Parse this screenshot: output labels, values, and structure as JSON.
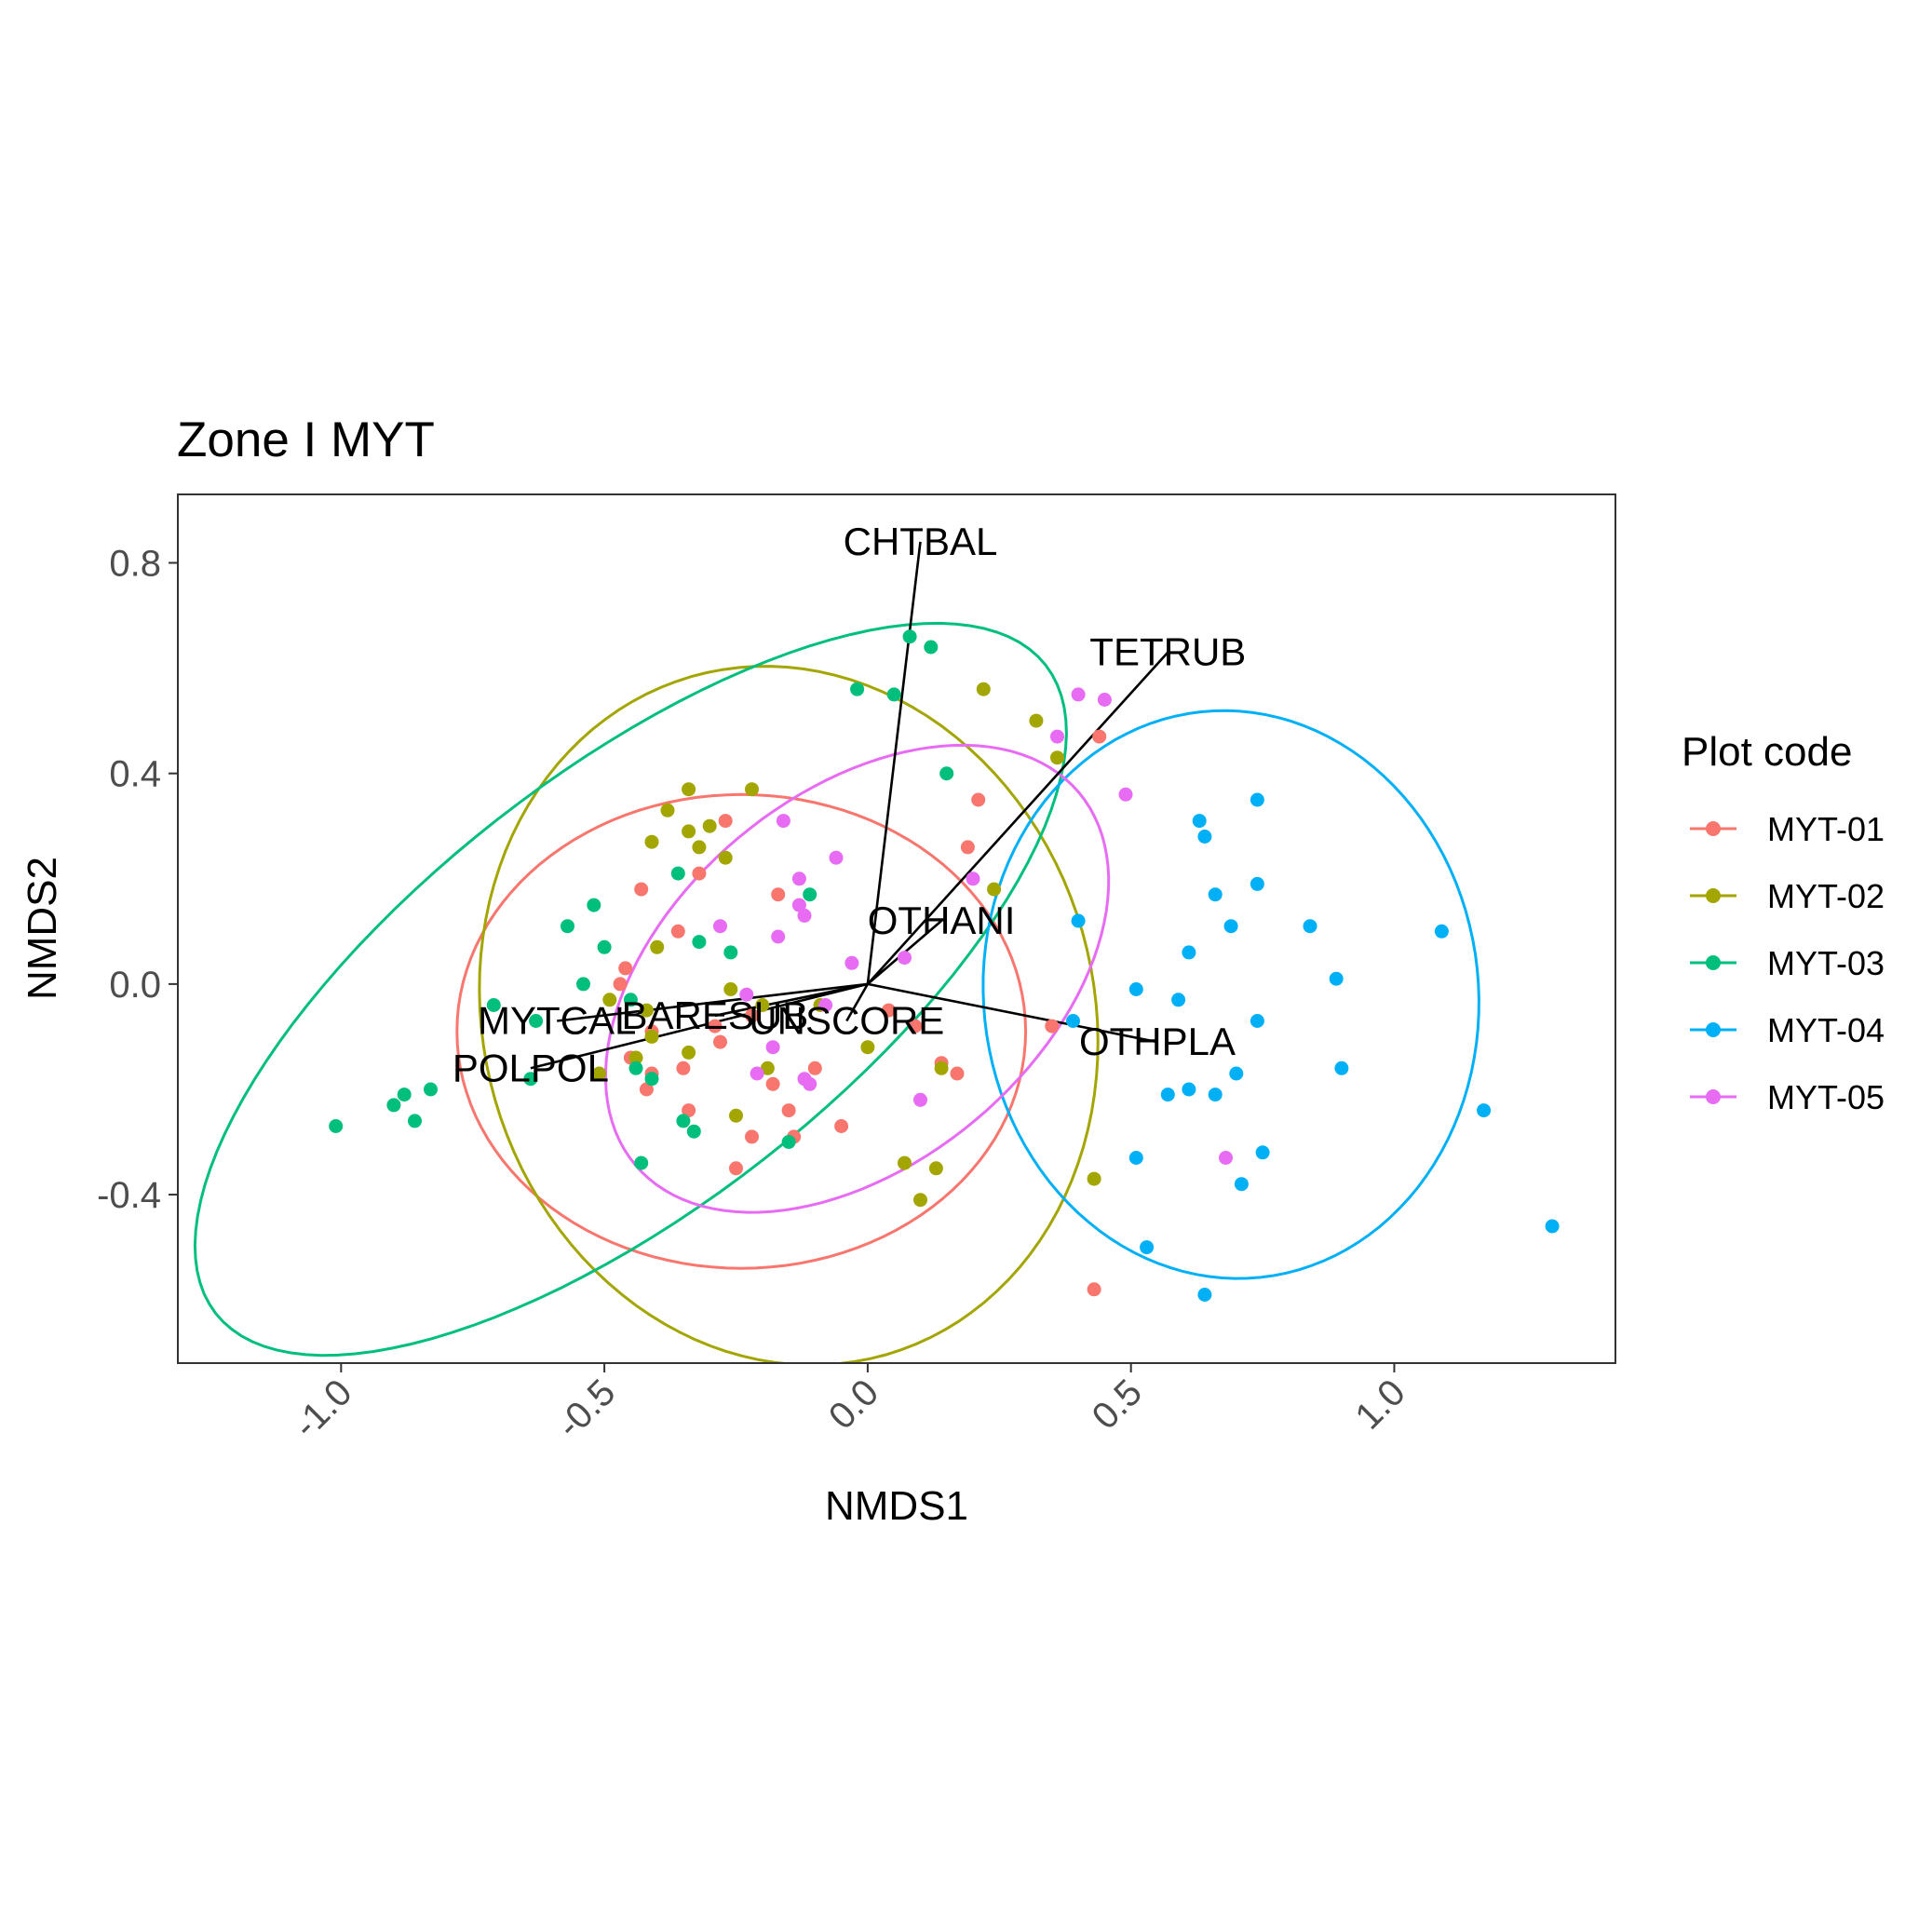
{
  "chart_data": {
    "type": "scatter",
    "title": "Zone I MYT",
    "xlabel": "NMDS1",
    "ylabel": "NMDS2",
    "xlim": [
      -1.31,
      1.42
    ],
    "ylim": [
      -0.72,
      0.93
    ],
    "x_ticks": [
      -1.0,
      -0.5,
      0.0,
      0.5,
      1.0
    ],
    "x_tick_labels": [
      "-1.0",
      "-0.5",
      "0.0",
      "0.5",
      "1.0"
    ],
    "y_ticks": [
      -0.4,
      0.0,
      0.4,
      0.8
    ],
    "y_tick_labels": [
      "-0.4",
      "0.0",
      "0.4",
      "0.8"
    ],
    "grid": false,
    "legend_title": "Plot code",
    "legend_position": "right",
    "series": [
      {
        "name": "MYT-01",
        "color": "#F8766D",
        "points": [
          [
            -0.43,
            0.18
          ],
          [
            -0.36,
            0.1
          ],
          [
            -0.32,
            0.21
          ],
          [
            -0.27,
            0.31
          ],
          [
            -0.17,
            0.17
          ],
          [
            -0.46,
            0.03
          ],
          [
            -0.41,
            -0.09
          ],
          [
            -0.45,
            -0.14
          ],
          [
            -0.42,
            -0.2
          ],
          [
            -0.41,
            -0.17
          ],
          [
            -0.35,
            -0.16
          ],
          [
            -0.34,
            -0.24
          ],
          [
            -0.28,
            -0.11
          ],
          [
            -0.29,
            -0.08
          ],
          [
            -0.25,
            -0.35
          ],
          [
            -0.22,
            -0.29
          ],
          [
            -0.18,
            -0.19
          ],
          [
            -0.15,
            -0.24
          ],
          [
            -0.14,
            -0.29
          ],
          [
            -0.1,
            -0.16
          ],
          [
            -0.05,
            -0.27
          ],
          [
            0.04,
            -0.05
          ],
          [
            0.09,
            -0.08
          ],
          [
            0.14,
            -0.15
          ],
          [
            0.17,
            -0.17
          ],
          [
            0.19,
            0.26
          ],
          [
            0.21,
            0.35
          ],
          [
            0.35,
            -0.08
          ],
          [
            0.44,
            0.47
          ],
          [
            0.43,
            -0.58
          ],
          [
            -0.47,
            0.0
          ],
          [
            -0.22,
            -0.06
          ]
        ]
      },
      {
        "name": "MYT-02",
        "color": "#A3A500",
        "points": [
          [
            -0.38,
            0.33
          ],
          [
            -0.34,
            0.37
          ],
          [
            -0.32,
            0.26
          ],
          [
            -0.3,
            0.3
          ],
          [
            -0.27,
            0.24
          ],
          [
            -0.22,
            0.37
          ],
          [
            -0.41,
            0.27
          ],
          [
            -0.34,
            0.29
          ],
          [
            -0.4,
            0.07
          ],
          [
            -0.49,
            -0.03
          ],
          [
            -0.44,
            -0.14
          ],
          [
            -0.41,
            -0.1
          ],
          [
            -0.34,
            -0.13
          ],
          [
            -0.51,
            -0.17
          ],
          [
            -0.25,
            -0.25
          ],
          [
            -0.26,
            -0.01
          ],
          [
            -0.2,
            -0.04
          ],
          [
            -0.19,
            -0.16
          ],
          [
            -0.09,
            -0.04
          ],
          [
            0.0,
            -0.12
          ],
          [
            0.07,
            -0.34
          ],
          [
            0.1,
            -0.41
          ],
          [
            0.13,
            -0.35
          ],
          [
            0.14,
            -0.16
          ],
          [
            0.22,
            0.56
          ],
          [
            0.24,
            0.18
          ],
          [
            0.32,
            0.5
          ],
          [
            0.36,
            0.43
          ],
          [
            0.43,
            -0.37
          ],
          [
            -0.42,
            -0.05
          ]
        ]
      },
      {
        "name": "MYT-03",
        "color": "#00BF7D",
        "points": [
          [
            -1.01,
            -0.27
          ],
          [
            -0.88,
            -0.21
          ],
          [
            -0.9,
            -0.23
          ],
          [
            -0.86,
            -0.26
          ],
          [
            -0.83,
            -0.2
          ],
          [
            -0.71,
            -0.04
          ],
          [
            -0.64,
            -0.18
          ],
          [
            -0.63,
            -0.07
          ],
          [
            -0.57,
            0.11
          ],
          [
            -0.52,
            0.15
          ],
          [
            -0.54,
            0.0
          ],
          [
            -0.5,
            0.07
          ],
          [
            -0.45,
            -0.03
          ],
          [
            -0.44,
            -0.16
          ],
          [
            -0.43,
            -0.34
          ],
          [
            -0.41,
            -0.18
          ],
          [
            -0.36,
            0.21
          ],
          [
            -0.32,
            0.08
          ],
          [
            -0.35,
            -0.26
          ],
          [
            -0.33,
            -0.28
          ],
          [
            -0.26,
            0.06
          ],
          [
            -0.11,
            0.17
          ],
          [
            -0.15,
            -0.3
          ],
          [
            -0.02,
            0.56
          ],
          [
            0.05,
            0.55
          ],
          [
            0.08,
            0.66
          ],
          [
            0.12,
            0.64
          ],
          [
            0.15,
            0.4
          ]
        ]
      },
      {
        "name": "MYT-04",
        "color": "#00B0F6",
        "points": [
          [
            0.39,
            -0.07
          ],
          [
            0.4,
            0.12
          ],
          [
            0.51,
            -0.01
          ],
          [
            0.53,
            -0.5
          ],
          [
            0.51,
            -0.33
          ],
          [
            0.57,
            -0.21
          ],
          [
            0.59,
            -0.03
          ],
          [
            0.61,
            0.06
          ],
          [
            0.61,
            -0.2
          ],
          [
            0.63,
            0.31
          ],
          [
            0.64,
            0.28
          ],
          [
            0.64,
            -0.59
          ],
          [
            0.66,
            0.17
          ],
          [
            0.66,
            -0.21
          ],
          [
            0.69,
            0.11
          ],
          [
            0.7,
            -0.17
          ],
          [
            0.71,
            -0.38
          ],
          [
            0.74,
            0.35
          ],
          [
            0.74,
            0.19
          ],
          [
            0.74,
            -0.07
          ],
          [
            0.75,
            -0.32
          ],
          [
            0.84,
            0.11
          ],
          [
            0.89,
            0.01
          ],
          [
            0.9,
            -0.16
          ],
          [
            1.09,
            0.1
          ],
          [
            1.17,
            -0.24
          ],
          [
            1.3,
            -0.46
          ]
        ]
      },
      {
        "name": "MYT-05",
        "color": "#E76BF3",
        "points": [
          [
            -0.28,
            0.11
          ],
          [
            -0.16,
            0.31
          ],
          [
            -0.13,
            0.2
          ],
          [
            -0.13,
            0.15
          ],
          [
            -0.12,
            0.13
          ],
          [
            -0.06,
            0.24
          ],
          [
            -0.17,
            0.09
          ],
          [
            -0.23,
            -0.02
          ],
          [
            -0.21,
            -0.17
          ],
          [
            -0.18,
            -0.12
          ],
          [
            -0.12,
            -0.18
          ],
          [
            -0.11,
            -0.19
          ],
          [
            -0.08,
            -0.04
          ],
          [
            -0.03,
            0.04
          ],
          [
            0.07,
            0.05
          ],
          [
            0.1,
            -0.22
          ],
          [
            0.2,
            0.2
          ],
          [
            0.36,
            0.47
          ],
          [
            0.4,
            0.55
          ],
          [
            0.45,
            0.54
          ],
          [
            0.49,
            0.36
          ],
          [
            0.68,
            -0.33
          ]
        ]
      }
    ],
    "ellipses": [
      {
        "series": "MYT-01",
        "color": "#F8766D",
        "center": [
          -0.24,
          -0.09
        ],
        "radii": [
          0.54,
          0.45
        ],
        "angle": 0
      },
      {
        "series": "MYT-02",
        "color": "#A3A500",
        "center": [
          -0.15,
          -0.06
        ],
        "radii": [
          0.58,
          0.67
        ],
        "angle": 16
      },
      {
        "series": "MYT-03",
        "color": "#00BF7D",
        "center": [
          -0.45,
          -0.01
        ],
        "radii": [
          1.0,
          0.41
        ],
        "angle": 38
      },
      {
        "series": "MYT-04",
        "color": "#00B0F6",
        "center": [
          0.69,
          -0.02
        ],
        "radii": [
          0.47,
          0.54
        ],
        "angle": 6
      },
      {
        "series": "MYT-05",
        "color": "#E76BF3",
        "center": [
          -0.02,
          0.01
        ],
        "radii": [
          0.55,
          0.35
        ],
        "angle": 40
      }
    ],
    "vectors": [
      {
        "name": "CHTBAL",
        "x": 0.1,
        "y": 0.84
      },
      {
        "name": "TETRUB",
        "x": 0.57,
        "y": 0.63
      },
      {
        "name": "OTHANI",
        "x": 0.14,
        "y": 0.12
      },
      {
        "name": "OTHPLA",
        "x": 0.55,
        "y": -0.11
      },
      {
        "name": "BARESUB",
        "x": -0.29,
        "y": -0.06
      },
      {
        "name": "UNSCORE",
        "x": -0.04,
        "y": -0.07
      },
      {
        "name": "MYTCAL",
        "x": -0.59,
        "y": -0.07
      },
      {
        "name": "POLPOL",
        "x": -0.64,
        "y": -0.16
      }
    ]
  }
}
